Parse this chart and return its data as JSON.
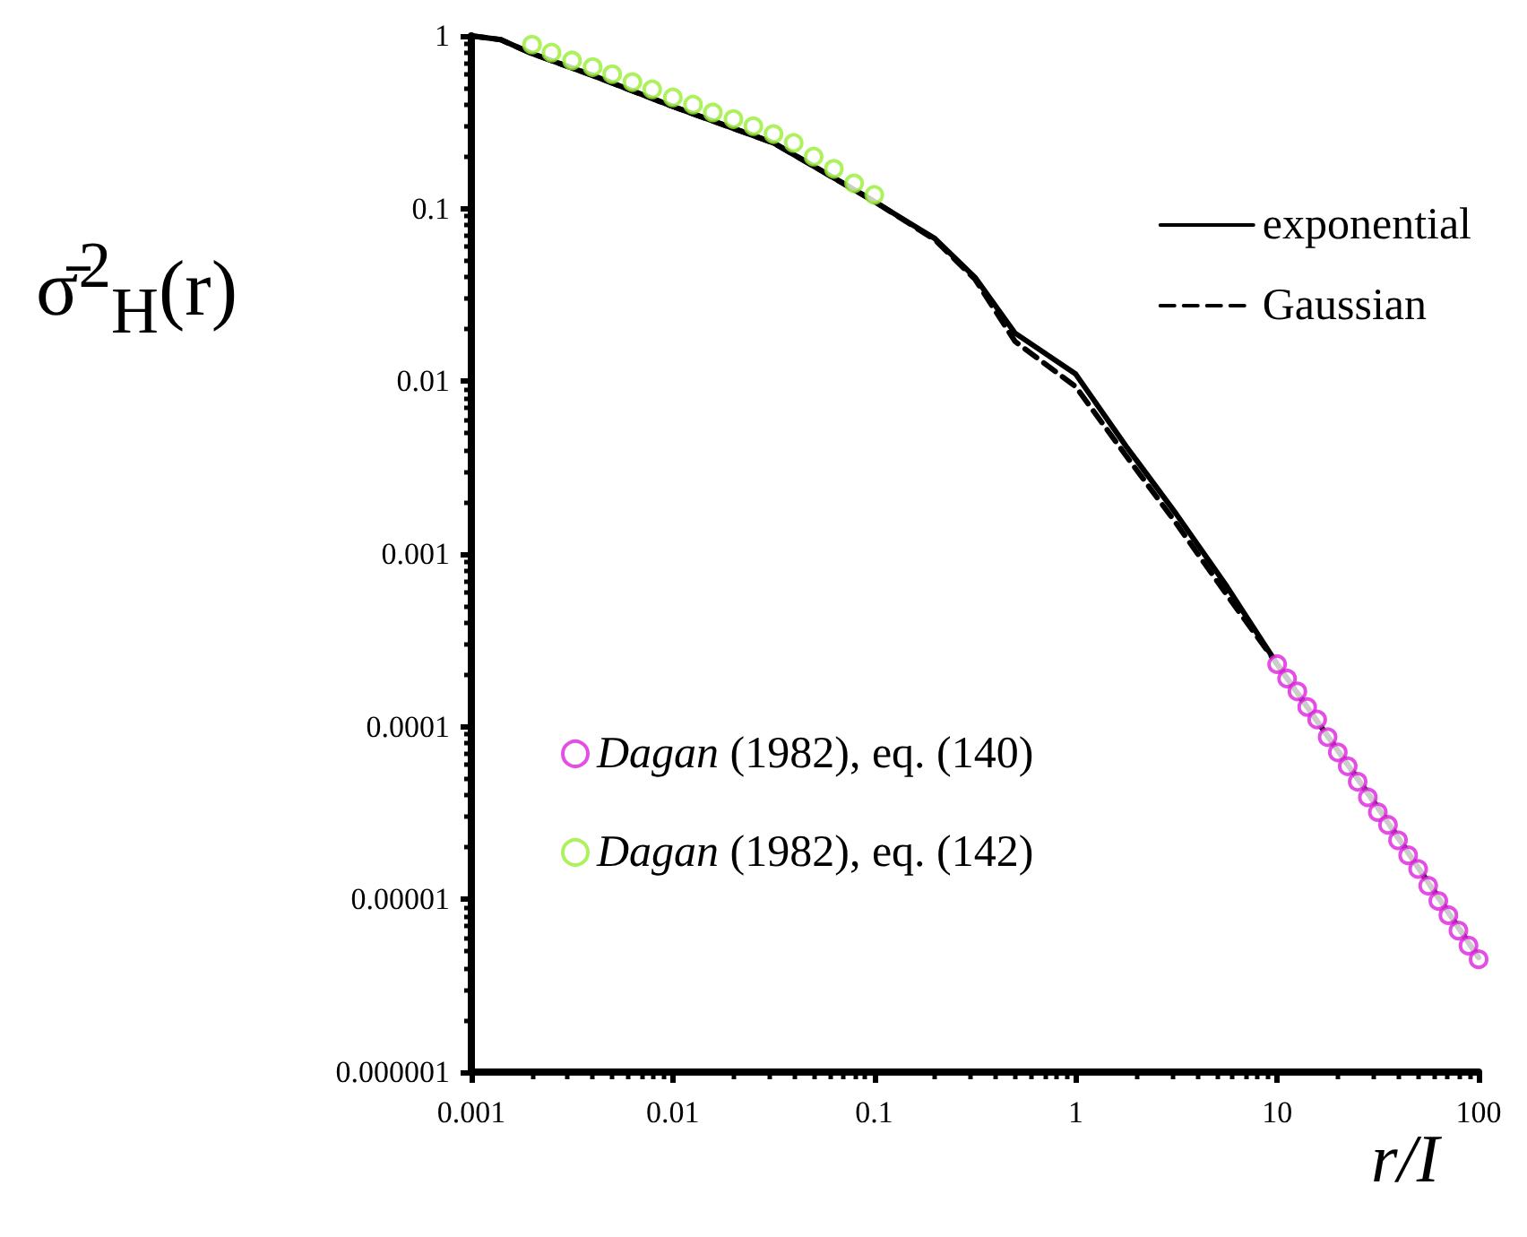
{
  "chart_data": {
    "type": "line",
    "xlabel": "r/I",
    "ylabel": "σ̄$^{2}$$_{H}$(r)",
    "log": "xy",
    "grid": false,
    "legend": "top right",
    "xlim": [
      0.001,
      100
    ],
    "ylim": [
      1e-06,
      1
    ],
    "xticks": [
      {
        "value": 0.001,
        "label": "0.001"
      },
      {
        "value": 0.01,
        "label": "0.01"
      },
      {
        "value": 0.1,
        "label": "0.1"
      },
      {
        "value": 1,
        "label": "1"
      },
      {
        "value": 10,
        "label": "10"
      },
      {
        "value": 100,
        "label": "100"
      }
    ],
    "yticks": [
      {
        "value": 1e-06,
        "label": "0.000001"
      },
      {
        "value": 1e-05,
        "label": "0.00001"
      },
      {
        "value": 0.0001,
        "label": "0.0001"
      },
      {
        "value": 0.001,
        "label": "0.001"
      },
      {
        "value": 0.01,
        "label": "0.01"
      },
      {
        "value": 0.1,
        "label": "0.1"
      },
      {
        "value": 1,
        "label": "1"
      }
    ],
    "series": [
      {
        "name": "exponential",
        "line_style": "solid",
        "marker": "none",
        "color": "#000000",
        "x": [
          0.001,
          0.0014,
          0.002,
          0.004,
          0.01,
          0.0316,
          0.1,
          0.2,
          0.316,
          0.5,
          1,
          1.78,
          3.16,
          5.62,
          10,
          31.6,
          100
        ],
        "values": [
          1,
          0.95,
          0.79,
          0.59,
          0.39,
          0.24,
          0.11,
          0.067,
          0.04,
          0.019,
          0.011,
          0.0042,
          0.0017,
          0.00065,
          0.00023,
          3.4e-05,
          4.6e-06
        ]
      },
      {
        "name": "Gaussian",
        "line_style": "dashed",
        "marker": "none",
        "color": "#000000",
        "x": [
          0.001,
          0.0014,
          0.002,
          0.004,
          0.01,
          0.0316,
          0.1,
          0.2,
          0.316,
          0.5,
          1,
          1.78,
          3.16,
          5.62,
          10,
          31.6,
          100
        ],
        "values": [
          1,
          0.95,
          0.79,
          0.59,
          0.39,
          0.24,
          0.11,
          0.066,
          0.039,
          0.017,
          0.0093,
          0.0037,
          0.0015,
          0.00058,
          0.00023,
          3.4e-05,
          4.6e-06
        ]
      },
      {
        "name": "Dagan (1982), eq. (140)",
        "type": "scatter",
        "marker": "circle",
        "color": "#dd22dd",
        "x": [
          10,
          11.2,
          12.6,
          14.1,
          15.8,
          17.8,
          20,
          22.4,
          25.1,
          28.2,
          31.6,
          35.5,
          39.8,
          44.7,
          50.1,
          56.2,
          63.1,
          70.8,
          79.4,
          89.1,
          100
        ],
        "values": [
          0.00023,
          0.00019,
          0.00016,
          0.00013,
          0.00011,
          8.7e-05,
          7.1e-05,
          5.9e-05,
          4.8e-05,
          3.9e-05,
          3.2e-05,
          2.7e-05,
          2.2e-05,
          1.8e-05,
          1.5e-05,
          1.2e-05,
          9.8e-06,
          8.1e-06,
          6.6e-06,
          5.4e-06,
          4.5e-06
        ]
      },
      {
        "name": "Dagan (1982), eq. (142)",
        "type": "scatter",
        "marker": "circle",
        "color": "#99ee33",
        "x": [
          0.002,
          0.0025,
          0.00316,
          0.004,
          0.005,
          0.0063,
          0.0079,
          0.01,
          0.0126,
          0.0158,
          0.02,
          0.0251,
          0.0316,
          0.0398,
          0.05,
          0.063,
          0.0794,
          0.1
        ],
        "values": [
          0.89,
          0.8,
          0.72,
          0.66,
          0.6,
          0.54,
          0.49,
          0.44,
          0.4,
          0.36,
          0.33,
          0.3,
          0.27,
          0.24,
          0.2,
          0.17,
          0.14,
          0.12
        ]
      }
    ]
  }
}
